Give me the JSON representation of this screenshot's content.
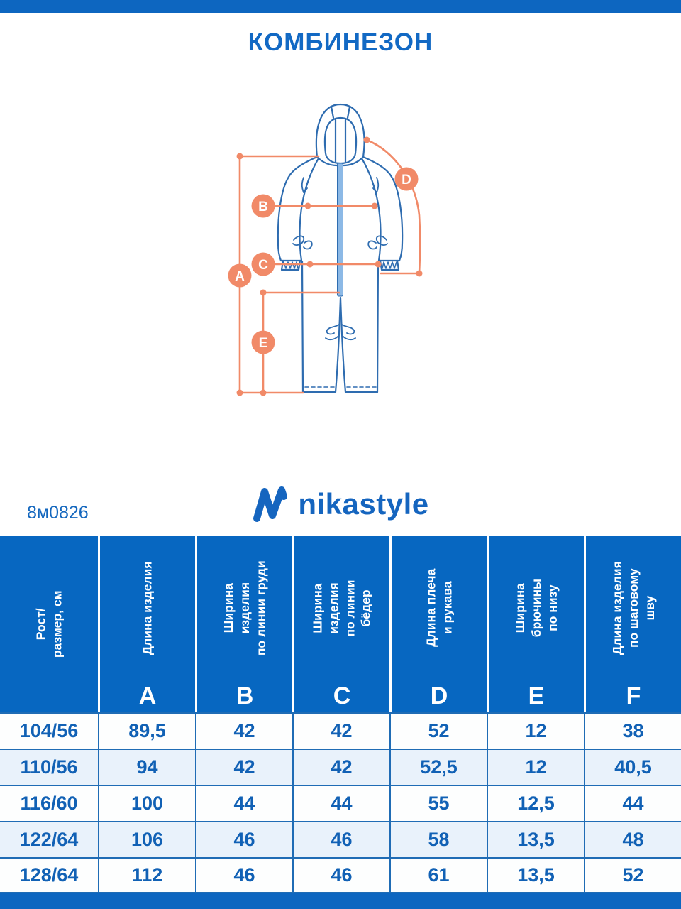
{
  "page": {
    "title": "КОМБИНЕЗОН",
    "product_code": "8м0826",
    "brand": "nikastyle",
    "colors": {
      "bar_blue": "#0d66c0",
      "header_blue": "#0767c1",
      "title_blue": "#1269c4",
      "cell_text_blue": "#1161b5",
      "border_blue": "#1f6cb5",
      "row_alt_blue": "#e9f2fb",
      "outline_blue": "#2e6cb0",
      "zipper_blue": "#8cb9e6",
      "accent_orange": "#f18a68"
    }
  },
  "diagram": {
    "measure_labels": [
      "A",
      "B",
      "C",
      "D",
      "E"
    ]
  },
  "size_table": {
    "row_header_label": "Рост/\nразмер, см",
    "columns": [
      {
        "label": "Длина изделия",
        "letter": "A"
      },
      {
        "label": "Ширина изделия\nпо линии груди",
        "letter": "B"
      },
      {
        "label": "Ширина изделия\nпо линии бёдер",
        "letter": "C"
      },
      {
        "label": "Длина плеча\nи рукава",
        "letter": "D"
      },
      {
        "label": "Ширина брючины\nпо низу",
        "letter": "E"
      },
      {
        "label": "Длина изделия\nпо шаговому шву",
        "letter": "F"
      }
    ],
    "rows": [
      {
        "size": "104/56",
        "values": [
          "89,5",
          "42",
          "42",
          "52",
          "12",
          "38"
        ]
      },
      {
        "size": "110/56",
        "values": [
          "94",
          "42",
          "42",
          "52,5",
          "12",
          "40,5"
        ]
      },
      {
        "size": "116/60",
        "values": [
          "100",
          "44",
          "44",
          "55",
          "12,5",
          "44"
        ]
      },
      {
        "size": "122/64",
        "values": [
          "106",
          "46",
          "46",
          "58",
          "13,5",
          "48"
        ]
      },
      {
        "size": "128/64",
        "values": [
          "112",
          "46",
          "46",
          "61",
          "13,5",
          "52"
        ]
      }
    ]
  }
}
